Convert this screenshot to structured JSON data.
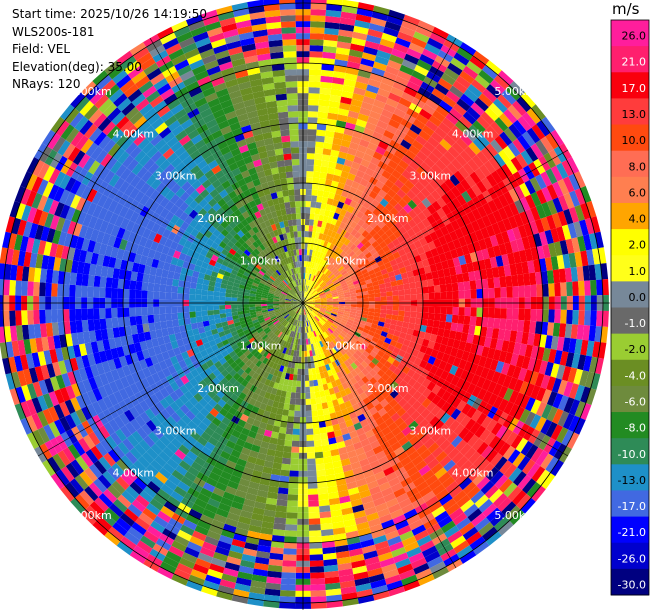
{
  "header": {
    "start_time": "Start time: 2025/10/26 14:19:50",
    "instrument": "WLS200s-181",
    "field": "Field: VEL",
    "elevation": "Elevation(deg): 35.00",
    "nrays": "NRays: 120"
  },
  "chart_data": {
    "type": "heatmap",
    "projection": "polar-ppi",
    "title": "",
    "field": "VEL",
    "units": "m/s",
    "nrays": 120,
    "range_rings_km": [
      1,
      2,
      3,
      4,
      5
    ],
    "range_labels": [
      "1.00km",
      "2.00km",
      "3.00km",
      "4.00km",
      "5.00km"
    ],
    "max_range_km": 5.1,
    "velocity_pattern": {
      "description_in_data_units": "Approaching velocities (negative) to the west, receding (positive) to the east; noisy beyond ~4 km",
      "inbound_peak_ms": -17,
      "outbound_peak_ms": 21,
      "noise_begins_km": 4.0
    },
    "colorbar": {
      "label": "m/s",
      "ticks": [
        "26.0",
        "21.0",
        "17.0",
        "13.0",
        "10.0",
        "8.0",
        "6.0",
        "4.0",
        "2.0",
        "1.0",
        "0.0",
        "-1.0",
        "-2.0",
        "-4.0",
        "-6.0",
        "-8.0",
        "-10.0",
        "-13.0",
        "-17.0",
        "-21.0",
        "-26.0",
        "-30.0"
      ],
      "bins": [
        {
          "min": 26,
          "max": 30,
          "color": "#ff1e9c"
        },
        {
          "min": 21,
          "max": 26,
          "color": "#ff1f6e"
        },
        {
          "min": 17,
          "max": 21,
          "color": "#f9000d"
        },
        {
          "min": 13,
          "max": 17,
          "color": "#ff3c3c"
        },
        {
          "min": 10,
          "max": 13,
          "color": "#ff4a0f"
        },
        {
          "min": 8,
          "max": 10,
          "color": "#ff6d54"
        },
        {
          "min": 6,
          "max": 8,
          "color": "#ff7f50"
        },
        {
          "min": 4,
          "max": 6,
          "color": "#ffa500"
        },
        {
          "min": 2,
          "max": 4,
          "color": "#ffff00"
        },
        {
          "min": 1,
          "max": 2,
          "color": "#ffff1a"
        },
        {
          "min": 0,
          "max": 1,
          "color": "#778899"
        },
        {
          "min": -1,
          "max": 0,
          "color": "#696969"
        },
        {
          "min": -2,
          "max": -1,
          "color": "#9acd32"
        },
        {
          "min": -4,
          "max": -2,
          "color": "#6b8e23"
        },
        {
          "min": -6,
          "max": -4,
          "color": "#6e8b3d"
        },
        {
          "min": -8,
          "max": -6,
          "color": "#228b22"
        },
        {
          "min": -10,
          "max": -8,
          "color": "#2e8b57"
        },
        {
          "min": -13,
          "max": -10,
          "color": "#1e90c8"
        },
        {
          "min": -17,
          "max": -13,
          "color": "#4169e1"
        },
        {
          "min": -21,
          "max": -17,
          "color": "#0000ff"
        },
        {
          "min": -26,
          "max": -21,
          "color": "#0000cd"
        },
        {
          "min": -30,
          "max": -26,
          "color": "#000080"
        }
      ]
    }
  }
}
